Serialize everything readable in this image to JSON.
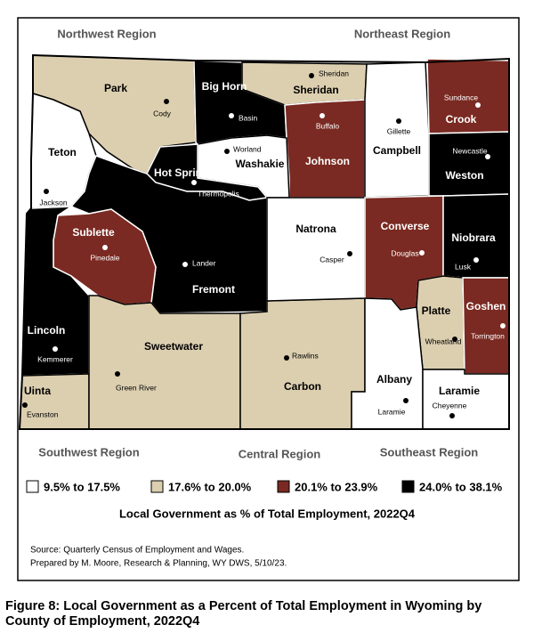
{
  "regions": [
    "Northwest Region",
    "Northeast Region",
    "Southwest Region",
    "Central Region",
    "Southeast Region"
  ],
  "legend": {
    "items": [
      {
        "label": "9.5% to 17.5%",
        "color": "#ffffff"
      },
      {
        "label": "17.6% to 20.0%",
        "color": "#dccfb0"
      },
      {
        "label": "20.1% to 23.9%",
        "color": "#7a2a22"
      },
      {
        "label": "24.0% to 38.1%",
        "color": "#000000"
      }
    ],
    "title": "Local Government as % of Total Employment, 2022Q4"
  },
  "counties": [
    {
      "name": "Park",
      "town": "Cody",
      "color": "#dccfb0"
    },
    {
      "name": "Teton",
      "town": "Jackson",
      "color": "#ffffff"
    },
    {
      "name": "Big Horn",
      "town": "Basin",
      "color": "#000000"
    },
    {
      "name": "Sheridan",
      "town": "Sheridan",
      "color": "#dccfb0"
    },
    {
      "name": "Johnson",
      "town": "Buffalo",
      "color": "#7a2a22"
    },
    {
      "name": "Campbell",
      "town": "Gillette",
      "color": "#ffffff"
    },
    {
      "name": "Crook",
      "town": "Sundance",
      "color": "#7a2a22"
    },
    {
      "name": "Weston",
      "town": "Newcastle",
      "color": "#000000"
    },
    {
      "name": "Washakie",
      "town": "Worland",
      "color": "#ffffff"
    },
    {
      "name": "Hot Springs",
      "town": "Thermopolis",
      "color": "#000000"
    },
    {
      "name": "Fremont",
      "town": "Lander",
      "color": "#000000"
    },
    {
      "name": "Sublette",
      "town": "Pinedale",
      "color": "#7a2a22"
    },
    {
      "name": "Lincoln",
      "town": "Kemmerer",
      "color": "#000000"
    },
    {
      "name": "Uinta",
      "town": "Evanston",
      "color": "#dccfb0"
    },
    {
      "name": "Sweetwater",
      "town": "Green River",
      "color": "#dccfb0"
    },
    {
      "name": "Carbon",
      "town": "Rawlins",
      "color": "#dccfb0"
    },
    {
      "name": "Natrona",
      "town": "Casper",
      "color": "#ffffff"
    },
    {
      "name": "Converse",
      "town": "Douglas",
      "color": "#7a2a22"
    },
    {
      "name": "Niobrara",
      "town": "Lusk",
      "color": "#000000"
    },
    {
      "name": "Platte",
      "town": "Wheatland",
      "color": "#dccfb0"
    },
    {
      "name": "Goshen",
      "town": "Torrington",
      "color": "#7a2a22"
    },
    {
      "name": "Albany",
      "town": "Laramie",
      "color": "#ffffff"
    },
    {
      "name": "Laramie",
      "town": "Cheyenne",
      "color": "#ffffff"
    }
  ],
  "source": [
    "Source: Quarterly Census of Employment and Wages.",
    "Prepared by M. Moore, Research & Planning, WY DWS, 5/10/23."
  ],
  "caption": [
    "Figure 8: Local Government as a Percent of Total Employment in Wyoming by",
    "County of Employment, 2022Q4"
  ]
}
